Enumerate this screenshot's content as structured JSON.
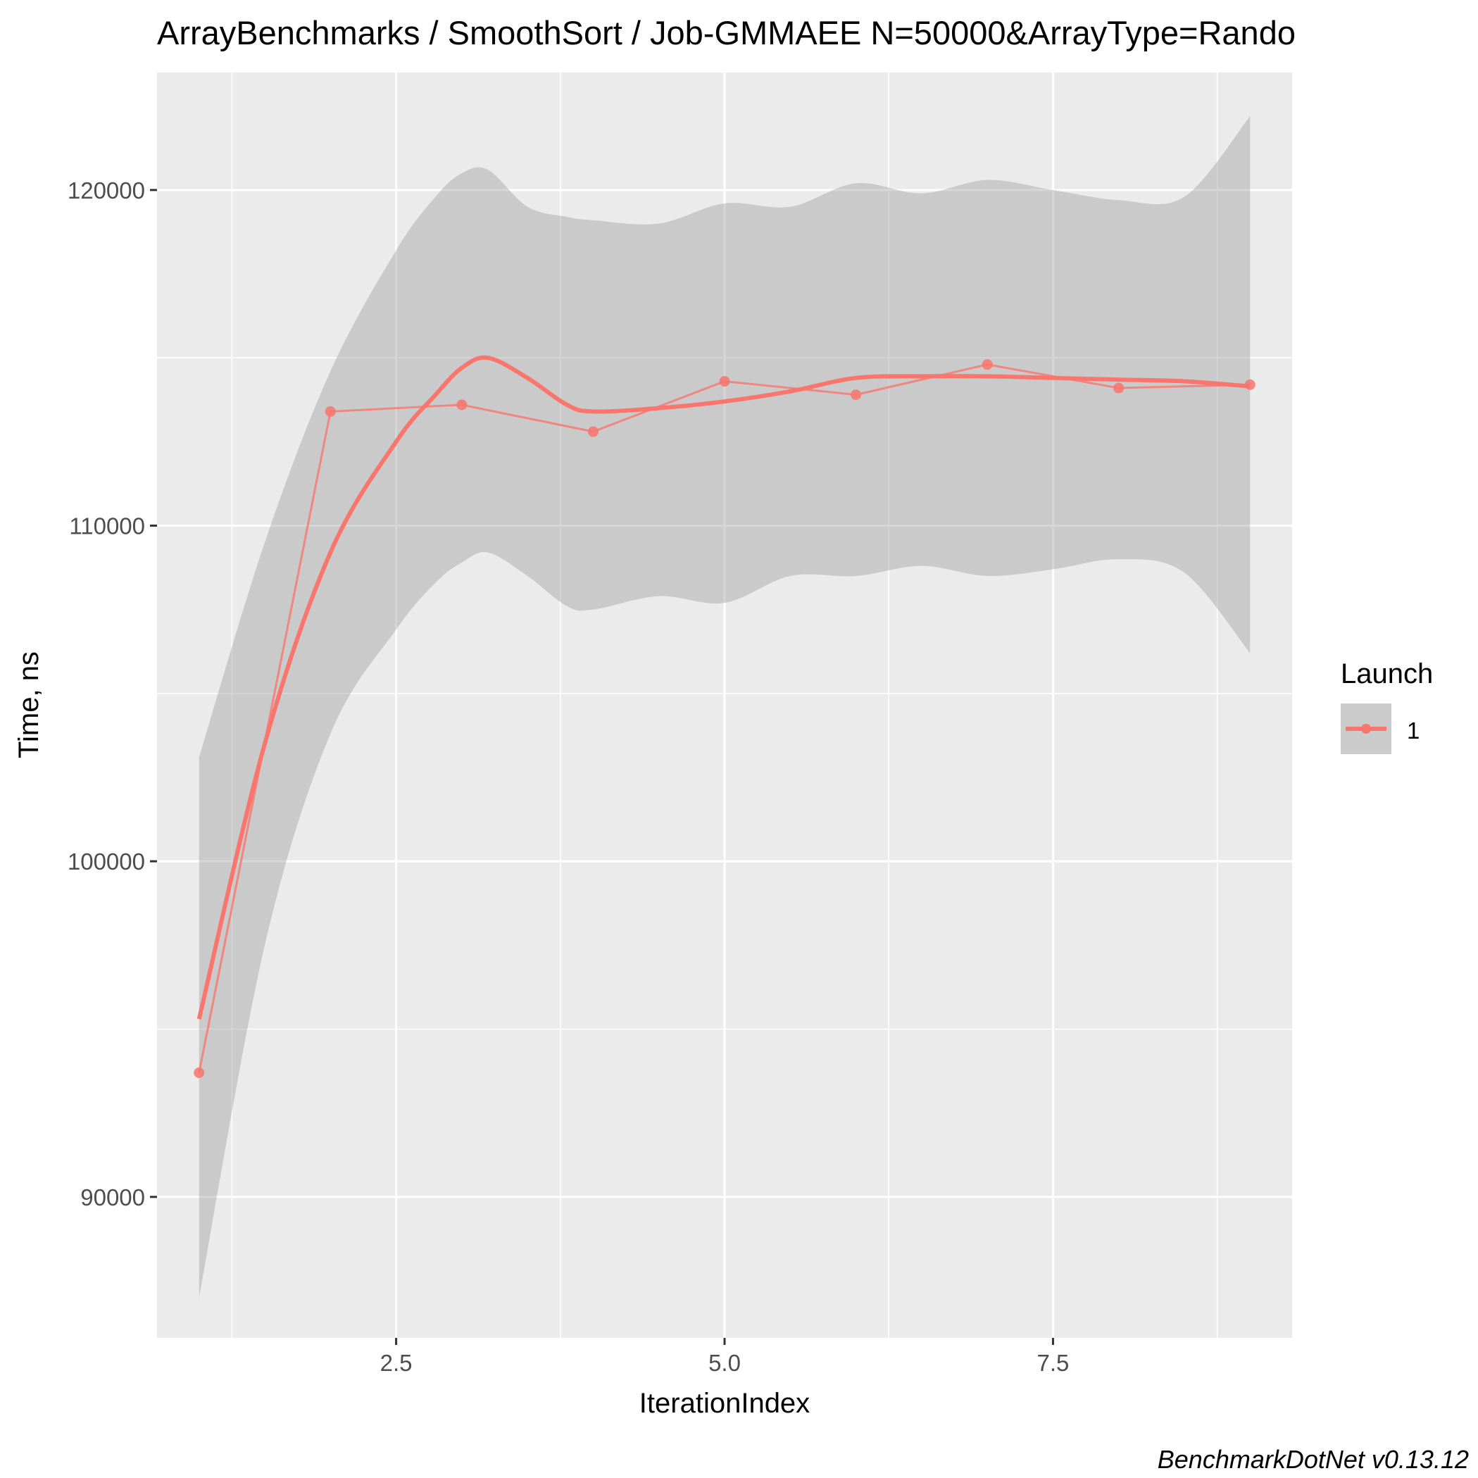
{
  "chart_data": {
    "type": "line",
    "title": "ArrayBenchmarks / SmoothSort / Job-GMMAEE N=50000&ArrayType=Rando",
    "xlabel": "IterationIndex",
    "ylabel": "Time, ns",
    "xlim": [
      0.68,
      9.32
    ],
    "ylim": [
      85800,
      123500
    ],
    "x_ticks": [
      2.5,
      5.0,
      7.5
    ],
    "x_tick_labels": [
      "2.5",
      "5.0",
      "7.5"
    ],
    "y_ticks": [
      90000,
      100000,
      110000,
      120000
    ],
    "y_tick_labels": [
      "90000",
      "100000",
      "110000",
      "120000"
    ],
    "grid": true,
    "legend": {
      "title": "Launch",
      "placement": "right",
      "entries": [
        "1"
      ]
    },
    "series": [
      {
        "name": "1",
        "color": "#F8766D",
        "x": [
          1,
          2,
          3,
          4,
          5,
          6,
          7,
          8,
          9
        ],
        "values": [
          93700,
          113400,
          113600,
          112800,
          114300,
          113900,
          114800,
          114100,
          114200
        ]
      }
    ],
    "smooth": {
      "x": [
        1.0,
        1.5,
        2.0,
        2.5,
        2.8,
        3.0,
        3.2,
        3.5,
        3.8,
        4.0,
        4.5,
        5.0,
        5.5,
        6.0,
        6.5,
        7.0,
        7.5,
        8.0,
        8.5,
        9.0
      ],
      "y": [
        95300,
        103500,
        109200,
        112500,
        113900,
        114700,
        115000,
        114400,
        113600,
        113400,
        113500,
        113700,
        114000,
        114400,
        114450,
        114450,
        114400,
        114350,
        114300,
        114150
      ],
      "lower": [
        87000,
        97500,
        103800,
        106900,
        108300,
        108900,
        109200,
        108500,
        107600,
        107500,
        107900,
        107700,
        108500,
        108500,
        108800,
        108500,
        108700,
        109000,
        108600,
        106200
      ],
      "upper": [
        103100,
        109500,
        114600,
        118200,
        119800,
        120500,
        120600,
        119500,
        119200,
        119100,
        119000,
        119600,
        119500,
        120200,
        119900,
        120300,
        120000,
        119700,
        119800,
        122200
      ]
    },
    "caption": "BenchmarkDotNet v0.13.12"
  }
}
